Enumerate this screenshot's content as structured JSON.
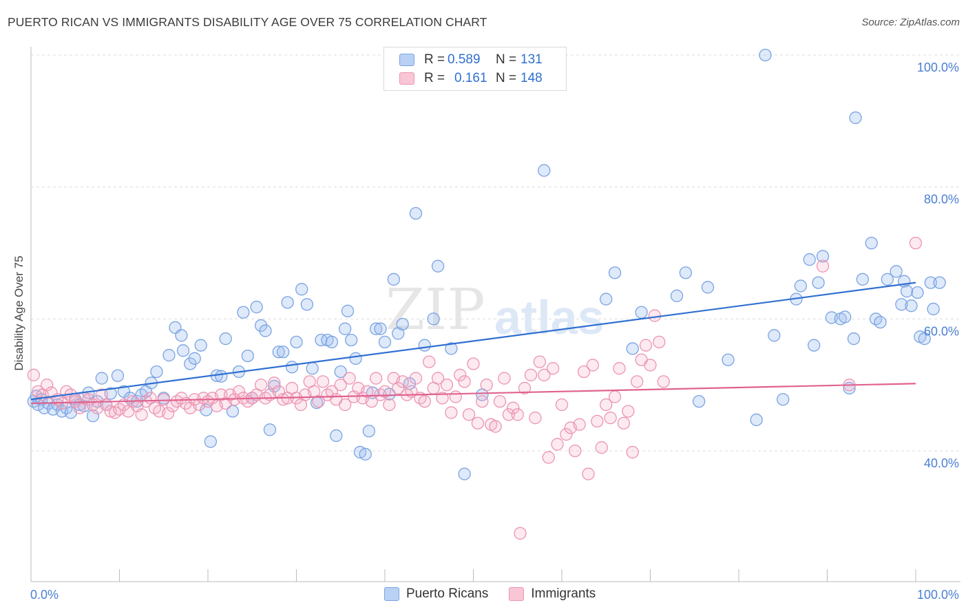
{
  "title": "PUERTO RICAN VS IMMIGRANTS DISABILITY AGE OVER 75 CORRELATION CHART",
  "source": "Source: ZipAtlas.com",
  "watermark": {
    "zip": "ZIP",
    "atlas": "atlas"
  },
  "legend": {
    "r_label": "R =",
    "n_label": "N =",
    "rows": [
      {
        "r": "0.589",
        "n": "131",
        "swatch_fill": "#b9d1f5",
        "swatch_stroke": "#7aa3e2"
      },
      {
        "r": "0.161",
        "n": "148",
        "swatch_fill": "#f9c6d6",
        "swatch_stroke": "#ec94b2"
      }
    ]
  },
  "bottom_legend": [
    "Puerto Ricans",
    "Immigrants"
  ],
  "chart_data": {
    "type": "scatter",
    "ylabel": "Disability Age Over 75",
    "xlim": [
      0,
      100
    ],
    "ylim": [
      20,
      102
    ],
    "x_tick_labels": {
      "0": "0.0%",
      "100": "100.0%"
    },
    "y_ticks": [
      100,
      80,
      60,
      40
    ],
    "y_tick_labels": [
      "100.0%",
      "80.0%",
      "60.0%",
      "40.0%"
    ],
    "grid": "horizontal dashed",
    "series": [
      {
        "name": "Puerto Ricans",
        "color": "#7aa3e2",
        "fill": "rgba(160,192,240,0.35)",
        "trend": {
          "x": [
            0,
            100
          ],
          "y": [
            47.8,
            65.5
          ],
          "color": "#2f6fd1"
        },
        "points": [
          [
            0.3,
            47.5
          ],
          [
            0.6,
            48.3
          ],
          [
            0.8,
            47.0
          ],
          [
            1.2,
            47.8
          ],
          [
            1.5,
            46.5
          ],
          [
            2.0,
            47.2
          ],
          [
            2.5,
            46.3
          ],
          [
            3.0,
            47.0
          ],
          [
            3.5,
            46.0
          ],
          [
            4.0,
            46.5
          ],
          [
            4.5,
            45.8
          ],
          [
            5.0,
            47.8
          ],
          [
            5.5,
            47.0
          ],
          [
            6.0,
            46.8
          ],
          [
            6.5,
            48.8
          ],
          [
            7.0,
            45.3
          ],
          [
            7.5,
            47.5
          ],
          [
            8.0,
            51.0
          ],
          [
            8.5,
            47.0
          ],
          [
            9.0,
            48.7
          ],
          [
            9.8,
            51.4
          ],
          [
            10.5,
            49.0
          ],
          [
            11.2,
            48.0
          ],
          [
            12.0,
            47.5
          ],
          [
            12.5,
            48.5
          ],
          [
            13.0,
            49.0
          ],
          [
            13.6,
            50.3
          ],
          [
            14.2,
            52.0
          ],
          [
            15.0,
            48.0
          ],
          [
            15.6,
            54.5
          ],
          [
            16.3,
            58.7
          ],
          [
            17.0,
            57.5
          ],
          [
            17.2,
            55.2
          ],
          [
            18.0,
            53.2
          ],
          [
            18.5,
            54.0
          ],
          [
            19.2,
            56.0
          ],
          [
            19.8,
            46.2
          ],
          [
            20.3,
            41.4
          ],
          [
            21.0,
            51.4
          ],
          [
            21.5,
            51.3
          ],
          [
            22.0,
            57.0
          ],
          [
            22.8,
            46.0
          ],
          [
            23.5,
            52.0
          ],
          [
            24.0,
            61.0
          ],
          [
            24.5,
            54.4
          ],
          [
            25.0,
            48.0
          ],
          [
            25.5,
            61.8
          ],
          [
            26.0,
            59.0
          ],
          [
            26.5,
            58.2
          ],
          [
            27.0,
            43.2
          ],
          [
            27.5,
            49.8
          ],
          [
            28.0,
            55.0
          ],
          [
            28.5,
            55.0
          ],
          [
            29.0,
            62.5
          ],
          [
            29.5,
            52.7
          ],
          [
            30.0,
            56.5
          ],
          [
            30.6,
            64.5
          ],
          [
            31.2,
            62.2
          ],
          [
            31.8,
            52.5
          ],
          [
            32.3,
            47.3
          ],
          [
            32.8,
            56.8
          ],
          [
            33.5,
            56.8
          ],
          [
            34.0,
            56.5
          ],
          [
            34.5,
            42.3
          ],
          [
            35.0,
            52.0
          ],
          [
            35.5,
            58.5
          ],
          [
            35.8,
            61.2
          ],
          [
            36.2,
            56.8
          ],
          [
            36.7,
            54.0
          ],
          [
            37.2,
            39.8
          ],
          [
            37.8,
            39.5
          ],
          [
            38.2,
            43.0
          ],
          [
            38.6,
            48.8
          ],
          [
            39.0,
            58.5
          ],
          [
            39.5,
            58.5
          ],
          [
            40.0,
            56.5
          ],
          [
            40.5,
            48.6
          ],
          [
            41.0,
            66.0
          ],
          [
            41.5,
            57.8
          ],
          [
            42.0,
            59.2
          ],
          [
            42.8,
            50.2
          ],
          [
            43.5,
            76.0
          ],
          [
            44.5,
            56.0
          ],
          [
            45.5,
            60.0
          ],
          [
            46.0,
            68.0
          ],
          [
            47.5,
            55.5
          ],
          [
            49.0,
            36.5
          ],
          [
            51.0,
            48.5
          ],
          [
            58.0,
            82.5
          ],
          [
            65.0,
            63.0
          ],
          [
            66.0,
            67.0
          ],
          [
            68.0,
            55.5
          ],
          [
            69.0,
            61.0
          ],
          [
            73.0,
            63.5
          ],
          [
            74.0,
            67.0
          ],
          [
            75.5,
            47.5
          ],
          [
            76.5,
            64.8
          ],
          [
            78.8,
            53.8
          ],
          [
            82.0,
            44.7
          ],
          [
            83.0,
            100.0
          ],
          [
            84.0,
            57.5
          ],
          [
            85.0,
            47.8
          ],
          [
            86.5,
            63.0
          ],
          [
            87.0,
            65.0
          ],
          [
            88.0,
            69.0
          ],
          [
            88.5,
            56.0
          ],
          [
            89.0,
            65.5
          ],
          [
            89.5,
            69.5
          ],
          [
            90.5,
            60.2
          ],
          [
            91.5,
            60.0
          ],
          [
            92.0,
            60.3
          ],
          [
            92.5,
            49.5
          ],
          [
            93.0,
            57.0
          ],
          [
            93.2,
            90.5
          ],
          [
            94.0,
            66.0
          ],
          [
            95.0,
            71.5
          ],
          [
            95.5,
            60.0
          ],
          [
            96.0,
            59.5
          ],
          [
            96.8,
            66.0
          ],
          [
            97.8,
            67.2
          ],
          [
            98.4,
            62.2
          ],
          [
            98.7,
            65.7
          ],
          [
            99.0,
            64.2
          ],
          [
            99.5,
            62.0
          ],
          [
            100.2,
            64.0
          ],
          [
            100.5,
            57.3
          ],
          [
            101.0,
            57.0
          ],
          [
            101.7,
            65.5
          ],
          [
            102.0,
            61.5
          ],
          [
            102.7,
            65.5
          ]
        ]
      },
      {
        "name": "Immigrants",
        "color": "#ec94b2",
        "fill": "rgba(244,170,196,0.25)",
        "trend": {
          "x": [
            0,
            100
          ],
          "y": [
            47.2,
            50.2
          ],
          "color": "#e0628e"
        },
        "points": [
          [
            0.3,
            51.5
          ],
          [
            0.8,
            49.0
          ],
          [
            1.3,
            48.5
          ],
          [
            1.8,
            50.0
          ],
          [
            2.3,
            48.8
          ],
          [
            3.0,
            47.8
          ],
          [
            3.5,
            47.2
          ],
          [
            4.0,
            49.0
          ],
          [
            4.5,
            48.5
          ],
          [
            5.0,
            47.5
          ],
          [
            5.5,
            46.5
          ],
          [
            6.0,
            48.0
          ],
          [
            6.5,
            47.8
          ],
          [
            7.0,
            47.0
          ],
          [
            7.5,
            46.5
          ],
          [
            8.0,
            48.5
          ],
          [
            8.5,
            47.0
          ],
          [
            9.0,
            46.0
          ],
          [
            9.5,
            45.8
          ],
          [
            10.0,
            46.3
          ],
          [
            10.5,
            47.0
          ],
          [
            11.0,
            46.0
          ],
          [
            11.5,
            47.5
          ],
          [
            12.0,
            46.8
          ],
          [
            12.5,
            45.5
          ],
          [
            13.0,
            47.5
          ],
          [
            13.5,
            48.0
          ],
          [
            14.0,
            46.5
          ],
          [
            14.5,
            46.0
          ],
          [
            15.0,
            47.8
          ],
          [
            15.5,
            45.7
          ],
          [
            16.0,
            46.8
          ],
          [
            16.5,
            47.5
          ],
          [
            17.0,
            48.0
          ],
          [
            17.5,
            47.2
          ],
          [
            18.0,
            46.5
          ],
          [
            18.5,
            47.8
          ],
          [
            19.0,
            47.0
          ],
          [
            19.5,
            48.0
          ],
          [
            20.0,
            47.5
          ],
          [
            20.5,
            48.0
          ],
          [
            21.0,
            46.8
          ],
          [
            21.5,
            48.5
          ],
          [
            22.0,
            47.2
          ],
          [
            22.5,
            48.5
          ],
          [
            23.0,
            47.8
          ],
          [
            23.5,
            49.0
          ],
          [
            24.0,
            48.0
          ],
          [
            24.5,
            47.5
          ],
          [
            25.0,
            48.0
          ],
          [
            25.5,
            48.5
          ],
          [
            26.0,
            50.0
          ],
          [
            26.5,
            48.0
          ],
          [
            27.0,
            48.5
          ],
          [
            27.5,
            50.3
          ],
          [
            28.0,
            49.0
          ],
          [
            28.5,
            47.8
          ],
          [
            29.0,
            48.0
          ],
          [
            29.5,
            49.5
          ],
          [
            30.0,
            48.0
          ],
          [
            30.5,
            47.0
          ],
          [
            31.0,
            48.5
          ],
          [
            31.5,
            50.5
          ],
          [
            32.0,
            49.0
          ],
          [
            32.5,
            47.5
          ],
          [
            33.0,
            50.5
          ],
          [
            33.5,
            48.5
          ],
          [
            34.0,
            49.0
          ],
          [
            34.5,
            47.8
          ],
          [
            35.0,
            50.0
          ],
          [
            35.5,
            47.0
          ],
          [
            36.0,
            51.0
          ],
          [
            36.5,
            48.2
          ],
          [
            37.0,
            49.5
          ],
          [
            37.5,
            48.0
          ],
          [
            38.0,
            49.0
          ],
          [
            38.5,
            47.5
          ],
          [
            39.0,
            51.0
          ],
          [
            39.5,
            48.5
          ],
          [
            40.0,
            49.0
          ],
          [
            40.5,
            47.0
          ],
          [
            41.0,
            51.0
          ],
          [
            41.5,
            49.5
          ],
          [
            42.0,
            50.5
          ],
          [
            42.5,
            48.5
          ],
          [
            43.0,
            49.0
          ],
          [
            43.5,
            51.0
          ],
          [
            44.0,
            48.0
          ],
          [
            44.5,
            47.5
          ],
          [
            45.0,
            53.5
          ],
          [
            45.5,
            49.5
          ],
          [
            46.0,
            51.0
          ],
          [
            46.5,
            48.0
          ],
          [
            47.0,
            50.0
          ],
          [
            47.5,
            45.8
          ],
          [
            48.0,
            48.2
          ],
          [
            48.5,
            51.5
          ],
          [
            49.0,
            50.5
          ],
          [
            49.5,
            45.5
          ],
          [
            50.0,
            53.2
          ],
          [
            50.5,
            44.2
          ],
          [
            51.0,
            47.5
          ],
          [
            51.5,
            50.0
          ],
          [
            52.0,
            44.0
          ],
          [
            52.5,
            43.7
          ],
          [
            53.0,
            47.5
          ],
          [
            53.5,
            51.0
          ],
          [
            54.0,
            45.5
          ],
          [
            54.5,
            46.5
          ],
          [
            55.0,
            45.5
          ],
          [
            55.3,
            27.5
          ],
          [
            55.8,
            49.5
          ],
          [
            56.5,
            51.5
          ],
          [
            57.0,
            45.0
          ],
          [
            57.5,
            53.5
          ],
          [
            58.0,
            51.5
          ],
          [
            58.5,
            39.0
          ],
          [
            59.0,
            52.5
          ],
          [
            59.5,
            41.0
          ],
          [
            60.0,
            47.0
          ],
          [
            60.5,
            42.5
          ],
          [
            61.0,
            43.5
          ],
          [
            61.5,
            40.0
          ],
          [
            62.0,
            44.0
          ],
          [
            62.5,
            52.0
          ],
          [
            63.0,
            36.5
          ],
          [
            63.5,
            53.0
          ],
          [
            64.0,
            44.5
          ],
          [
            64.5,
            40.5
          ],
          [
            65.0,
            47.0
          ],
          [
            65.5,
            45.0
          ],
          [
            66.0,
            48.2
          ],
          [
            66.5,
            52.5
          ],
          [
            67.0,
            44.2
          ],
          [
            67.5,
            46.0
          ],
          [
            68.0,
            39.8
          ],
          [
            68.5,
            50.5
          ],
          [
            69.0,
            53.8
          ],
          [
            69.5,
            56.0
          ],
          [
            70.0,
            53.0
          ],
          [
            70.5,
            60.5
          ],
          [
            71.0,
            56.5
          ],
          [
            71.5,
            50.5
          ],
          [
            89.5,
            68.0
          ],
          [
            92.5,
            50.0
          ],
          [
            100.0,
            71.5
          ]
        ]
      }
    ]
  }
}
